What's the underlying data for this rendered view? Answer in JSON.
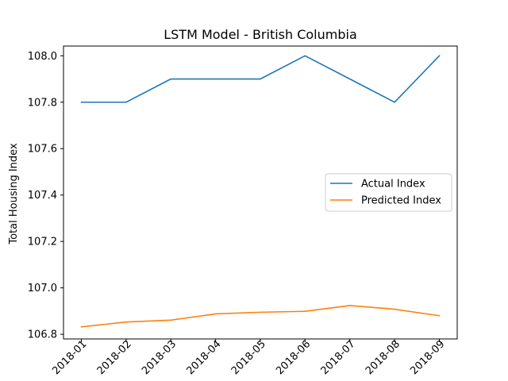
{
  "chart_data": {
    "type": "line",
    "title": "LSTM Model - British Columbia",
    "xlabel": "",
    "ylabel": "Total Housing Index",
    "categories": [
      "2018-01",
      "2018-02",
      "2018-03",
      "2018-04",
      "2018-05",
      "2018-06",
      "2018-07",
      "2018-08",
      "2018-09"
    ],
    "series": [
      {
        "name": "Actual Index",
        "color": "#1f77b4",
        "values": [
          107.8,
          107.8,
          107.9,
          107.9,
          107.9,
          108.0,
          107.9,
          107.8,
          108.0
        ]
      },
      {
        "name": "Predicted Index",
        "color": "#ff7f0e",
        "values": [
          106.832,
          106.853,
          106.861,
          106.888,
          106.895,
          106.899,
          106.924,
          106.908,
          106.88
        ]
      }
    ],
    "ylim": [
      106.78,
      108.042
    ],
    "yticks": [
      "106.8",
      "107.0",
      "107.2",
      "107.4",
      "107.6",
      "107.8",
      "108.0"
    ],
    "legend_position": "center-right",
    "grid": false
  }
}
